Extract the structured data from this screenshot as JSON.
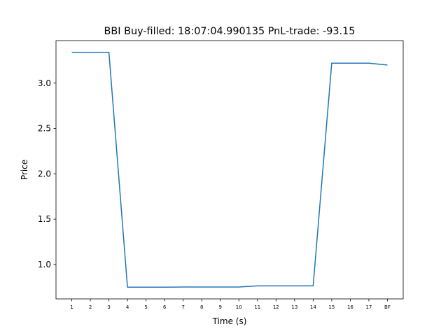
{
  "chart_data": {
    "type": "line",
    "title": "BBI  Buy-filled:  18:07:04.990135  PnL-trade:  -93.15",
    "xlabel": "Time (s)",
    "ylabel": "Price",
    "categories": [
      "1",
      "2",
      "3",
      "4",
      "5",
      "6",
      "7",
      "8",
      "9",
      "10",
      "11",
      "12",
      "13",
      "14",
      "15",
      "16",
      "17",
      "BF"
    ],
    "x_ticks": [
      1,
      2,
      3,
      4,
      5,
      6,
      7,
      8,
      9,
      10,
      11,
      12,
      13,
      14,
      15,
      16,
      17,
      18
    ],
    "series": [
      {
        "x": [
          1,
          2,
          3,
          4,
          5,
          6,
          7,
          8,
          9,
          10,
          11,
          12,
          13,
          14,
          15,
          16,
          17,
          18
        ],
        "values": [
          3.34,
          3.34,
          3.34,
          0.75,
          0.75,
          0.75,
          0.752,
          0.752,
          0.752,
          0.752,
          0.765,
          0.765,
          0.765,
          0.765,
          3.22,
          3.22,
          3.22,
          3.2
        ],
        "color": "#1f77b4"
      }
    ],
    "xlim": [
      0.15,
      18.85
    ],
    "ylim": [
      0.621,
      3.469
    ],
    "yticks": [
      1.0,
      1.5,
      2.0,
      2.5,
      3.0
    ],
    "ytick_labels": [
      "1.0",
      "1.5",
      "2.0",
      "2.5",
      "3.0"
    ],
    "grid": false,
    "legend": null
  }
}
